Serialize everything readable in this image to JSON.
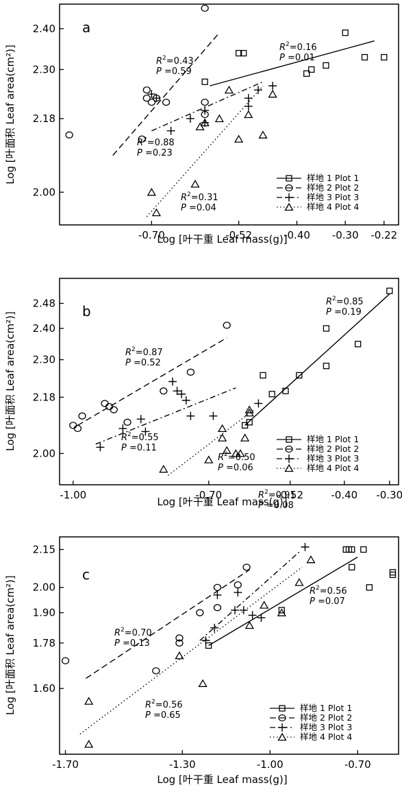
{
  "figure": {
    "panels": [
      "a",
      "b",
      "c"
    ]
  },
  "chart_data": [
    {
      "type": "scatter",
      "panel_label": "a",
      "xlabel": "Log [叶干重 Leaf mass(g)]",
      "ylabel": "Log [叶面积 Leaf area(cm²)]",
      "xticks": [
        -0.7,
        -0.52,
        -0.4,
        -0.3,
        -0.22
      ],
      "xtick_labels": [
        "-0.70",
        "-0.52",
        "-0.40",
        "-0.30",
        "-0.22"
      ],
      "yticks": [
        2.0,
        2.18,
        2.3,
        2.4
      ],
      "ytick_labels": [
        "2.00",
        "2.18",
        "2.30",
        "2.40"
      ],
      "xlim": [
        -0.89,
        -0.19
      ],
      "ylim": [
        1.92,
        2.46
      ],
      "legend_position": "bottom-right",
      "series": [
        {
          "name": "样地 1 Plot 1",
          "marker": "square",
          "line": "solid",
          "points": [
            [
              -0.59,
              2.27
            ],
            [
              -0.52,
              2.34
            ],
            [
              -0.51,
              2.34
            ],
            [
              -0.38,
              2.29
            ],
            [
              -0.37,
              2.3
            ],
            [
              -0.34,
              2.31
            ],
            [
              -0.3,
              2.39
            ],
            [
              -0.26,
              2.33
            ],
            [
              -0.22,
              2.33
            ]
          ],
          "fit": [
            [
              -0.58,
              2.26
            ],
            [
              -0.24,
              2.37
            ]
          ],
          "annotation": {
            "r2": "0.16",
            "p": "0.01"
          }
        },
        {
          "name": "样地 2 Plot 2",
          "marker": "circle",
          "line": "dashed",
          "points": [
            [
              -0.87,
              2.14
            ],
            [
              -0.72,
              2.13
            ],
            [
              -0.71,
              2.25
            ],
            [
              -0.71,
              2.23
            ],
            [
              -0.7,
              2.22
            ],
            [
              -0.69,
              2.23
            ],
            [
              -0.67,
              2.22
            ],
            [
              -0.59,
              2.22
            ],
            [
              -0.59,
              2.19
            ],
            [
              -0.59,
              2.45
            ]
          ],
          "fit": [
            [
              -0.78,
              2.09
            ],
            [
              -0.56,
              2.39
            ]
          ],
          "annotation": {
            "r2": "0.43",
            "p": "0.59"
          }
        },
        {
          "name": "样地 3 Plot 3",
          "marker": "plus",
          "line": "dashdot",
          "points": [
            [
              -0.7,
              2.24
            ],
            [
              -0.69,
              2.23
            ],
            [
              -0.66,
              2.15
            ],
            [
              -0.62,
              2.18
            ],
            [
              -0.59,
              2.2
            ],
            [
              -0.59,
              2.17
            ],
            [
              -0.5,
              2.21
            ],
            [
              -0.5,
              2.23
            ],
            [
              -0.48,
              2.25
            ],
            [
              -0.45,
              2.26
            ]
          ],
          "fit": [
            [
              -0.7,
              2.15
            ],
            [
              -0.47,
              2.27
            ]
          ],
          "annotation": {
            "r2": "0.88",
            "p": "0.23"
          }
        },
        {
          "name": "样地 4 Plot 4",
          "marker": "triangle",
          "line": "dotted",
          "points": [
            [
              -0.7,
              2.0
            ],
            [
              -0.69,
              1.95
            ],
            [
              -0.61,
              2.02
            ],
            [
              -0.6,
              2.16
            ],
            [
              -0.59,
              2.17
            ],
            [
              -0.56,
              2.18
            ],
            [
              -0.54,
              2.25
            ],
            [
              -0.52,
              2.13
            ],
            [
              -0.5,
              2.19
            ],
            [
              -0.47,
              2.14
            ],
            [
              -0.45,
              2.24
            ]
          ],
          "fit": [
            [
              -0.71,
              1.94
            ],
            [
              -0.47,
              2.26
            ]
          ],
          "annotation": {
            "r2": "0.31",
            "p": "0.04"
          }
        }
      ]
    },
    {
      "type": "scatter",
      "panel_label": "b",
      "xlabel": "Log [叶干重 Leaf mass(g)]",
      "ylabel": "Log [叶面积 Leaf area(cm²)]",
      "xticks": [
        -1.0,
        -0.7,
        -0.52,
        -0.4,
        -0.3
      ],
      "xtick_labels": [
        "-1.00",
        "-0.70",
        "-0.52",
        "-0.40",
        "-0.30"
      ],
      "yticks": [
        2.0,
        2.18,
        2.3,
        2.4,
        2.48
      ],
      "ytick_labels": [
        "2.00",
        "2.18",
        "2.30",
        "2.40",
        "2.48"
      ],
      "xlim": [
        -1.03,
        -0.28
      ],
      "ylim": [
        1.9,
        2.56
      ],
      "legend_position": "bottom-right",
      "series": [
        {
          "name": "样地 1 Plot 1",
          "marker": "square",
          "line": "solid",
          "points": [
            [
              -0.62,
              2.09
            ],
            [
              -0.61,
              2.1
            ],
            [
              -0.58,
              2.25
            ],
            [
              -0.56,
              2.19
            ],
            [
              -0.53,
              2.2
            ],
            [
              -0.5,
              2.25
            ],
            [
              -0.44,
              2.4
            ],
            [
              -0.44,
              2.28
            ],
            [
              -0.37,
              2.35
            ],
            [
              -0.3,
              2.52
            ]
          ],
          "fit": [
            [
              -0.62,
              2.09
            ],
            [
              -0.3,
              2.51
            ]
          ],
          "annotation": {
            "r2": "0.85",
            "p": "0.19"
          }
        },
        {
          "name": "样地 2 Plot 2",
          "marker": "circle",
          "line": "dashed",
          "points": [
            [
              -1.0,
              2.09
            ],
            [
              -0.99,
              2.08
            ],
            [
              -0.98,
              2.12
            ],
            [
              -0.93,
              2.16
            ],
            [
              -0.92,
              2.15
            ],
            [
              -0.91,
              2.14
            ],
            [
              -0.88,
              2.1
            ],
            [
              -0.8,
              2.2
            ],
            [
              -0.74,
              2.26
            ],
            [
              -0.66,
              2.41
            ]
          ],
          "fit": [
            [
              -0.99,
              2.09
            ],
            [
              -0.66,
              2.37
            ]
          ],
          "annotation": {
            "r2": "0.87",
            "p": "0.52"
          }
        },
        {
          "name": "样地 3 Plot 3",
          "marker": "plus",
          "line": "dashdot",
          "points": [
            [
              -0.94,
              2.02
            ],
            [
              -0.89,
              2.08
            ],
            [
              -0.85,
              2.11
            ],
            [
              -0.84,
              2.07
            ],
            [
              -0.78,
              2.23
            ],
            [
              -0.77,
              2.2
            ],
            [
              -0.76,
              2.19
            ],
            [
              -0.75,
              2.17
            ],
            [
              -0.74,
              2.12
            ],
            [
              -0.69,
              2.12
            ],
            [
              -0.59,
              2.16
            ]
          ],
          "fit": [
            [
              -0.95,
              2.03
            ],
            [
              -0.64,
              2.21
            ]
          ],
          "annotation": {
            "r2": "0.55",
            "p": "0.11"
          }
        },
        {
          "name": "样地 4 Plot 4",
          "marker": "triangle",
          "line": "dotted",
          "points": [
            [
              -0.8,
              1.95
            ],
            [
              -0.7,
              1.98
            ],
            [
              -0.67,
              2.08
            ],
            [
              -0.67,
              2.05
            ],
            [
              -0.66,
              2.01
            ],
            [
              -0.64,
              2.0
            ],
            [
              -0.63,
              2.0
            ],
            [
              -0.62,
              2.05
            ],
            [
              -0.61,
              2.13
            ],
            [
              -0.61,
              2.14
            ]
          ],
          "fit": [
            [
              -0.79,
              1.93
            ],
            [
              -0.6,
              2.14
            ]
          ],
          "annotation": {
            "r2": "0.50",
            "p": "0.06"
          }
        }
      ]
    },
    {
      "type": "scatter",
      "panel_label": "c",
      "xlabel": "Log [叶干重 Leaf mass(g)]",
      "ylabel": "Log [叶面积 Leaf area(cm²)]",
      "xticks": [
        -1.7,
        -1.3,
        -1.0,
        -0.7
      ],
      "xtick_labels": [
        "-1.70",
        "-1.30",
        "-1.00",
        "-0.70"
      ],
      "yticks": [
        1.6,
        1.78,
        1.9,
        2.0,
        2.15
      ],
      "ytick_labels": [
        "1.60",
        "1.78",
        "1.90",
        "2.00",
        "2.15"
      ],
      "xlim": [
        -1.72,
        -0.56
      ],
      "ylim": [
        1.34,
        2.2
      ],
      "legend_position": "bottom-right",
      "series": [
        {
          "name": "样地 1 Plot 1",
          "marker": "square",
          "line": "solid",
          "points": [
            [
              -1.21,
              1.77
            ],
            [
              -0.96,
              1.91
            ],
            [
              -0.74,
              2.15
            ],
            [
              -0.73,
              2.15
            ],
            [
              -0.72,
              2.15
            ],
            [
              -0.72,
              2.08
            ],
            [
              -0.68,
              2.15
            ],
            [
              -0.66,
              2.0
            ],
            [
              -0.58,
              2.05
            ],
            [
              -0.58,
              2.06
            ]
          ],
          "fit": [
            [
              -1.21,
              1.77
            ],
            [
              -0.7,
              2.12
            ]
          ],
          "annotation": {
            "r2": "0.56",
            "p": "0.07"
          }
        },
        {
          "name": "样地 2 Plot 2",
          "marker": "circle",
          "line": "dashed",
          "points": [
            [
              -1.7,
              1.71
            ],
            [
              -1.39,
              1.67
            ],
            [
              -1.31,
              1.78
            ],
            [
              -1.31,
              1.8
            ],
            [
              -1.24,
              1.9
            ],
            [
              -1.18,
              1.92
            ],
            [
              -1.18,
              2.0
            ],
            [
              -1.11,
              2.01
            ],
            [
              -1.08,
              2.08
            ]
          ],
          "fit": [
            [
              -1.63,
              1.64
            ],
            [
              -1.07,
              2.07
            ]
          ],
          "annotation": {
            "r2": "0.70",
            "p": "0.13"
          }
        },
        {
          "name": "样地 3 Plot 3",
          "marker": "plus",
          "line": "dashdot",
          "points": [
            [
              -1.22,
              1.79
            ],
            [
              -1.19,
              1.84
            ],
            [
              -1.18,
              1.97
            ],
            [
              -1.12,
              1.91
            ],
            [
              -1.11,
              1.98
            ],
            [
              -1.09,
              1.91
            ],
            [
              -1.06,
              1.89
            ],
            [
              -1.03,
              1.88
            ],
            [
              -0.88,
              2.16
            ]
          ],
          "fit": [
            [
              -1.24,
              1.79
            ],
            [
              -0.9,
              2.14
            ]
          ],
          "annotation": {
            "r2": "0.91",
            "p": "0.08"
          }
        },
        {
          "name": "样地 4 Plot 4",
          "marker": "triangle",
          "line": "dotted",
          "points": [
            [
              -1.62,
              1.55
            ],
            [
              -1.62,
              1.38
            ],
            [
              -1.31,
              1.73
            ],
            [
              -1.23,
              1.62
            ],
            [
              -1.07,
              1.85
            ],
            [
              -1.02,
              1.93
            ],
            [
              -0.96,
              1.9
            ],
            [
              -0.9,
              2.02
            ],
            [
              -0.86,
              2.11
            ]
          ],
          "fit": [
            [
              -1.65,
              1.42
            ],
            [
              -0.89,
              2.08
            ]
          ],
          "annotation": {
            "r2": "0.56",
            "p": "0.65"
          }
        }
      ]
    }
  ]
}
